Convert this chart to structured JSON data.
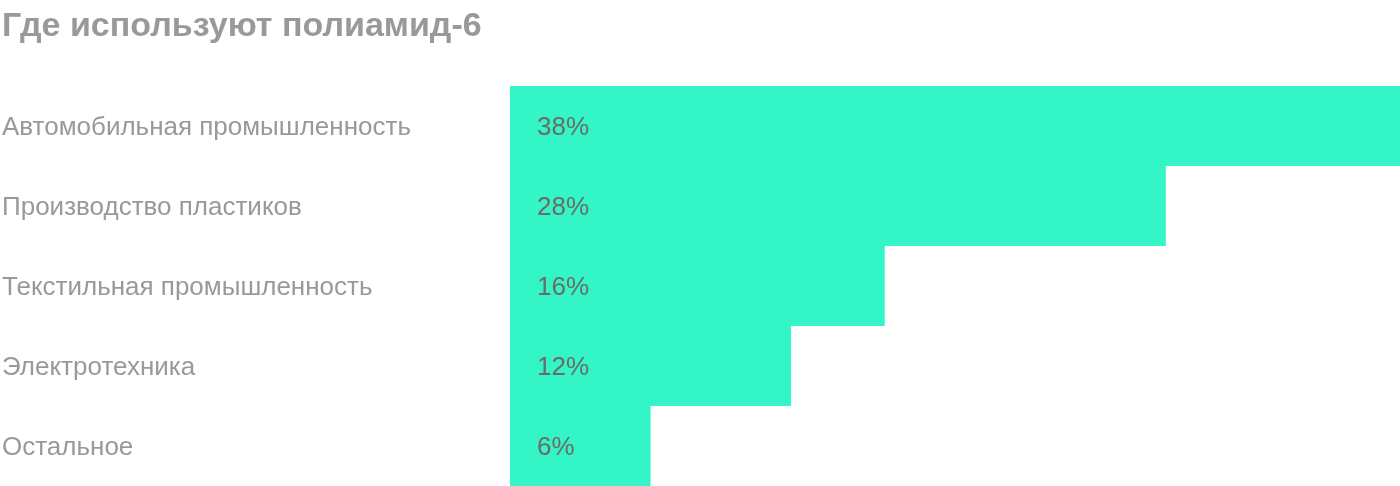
{
  "chart_data": {
    "type": "bar",
    "orientation": "horizontal",
    "title": "Где используют полиамид-6",
    "categories": [
      "Автомобильная промышленность",
      "Производство пластиков",
      "Текстильная промышленность",
      "Электротехника",
      "Остальное"
    ],
    "values": [
      38,
      28,
      16,
      12,
      6
    ],
    "value_labels": [
      "38%",
      "28%",
      "16%",
      "12%",
      "6%"
    ],
    "color": "#33f5c5"
  }
}
